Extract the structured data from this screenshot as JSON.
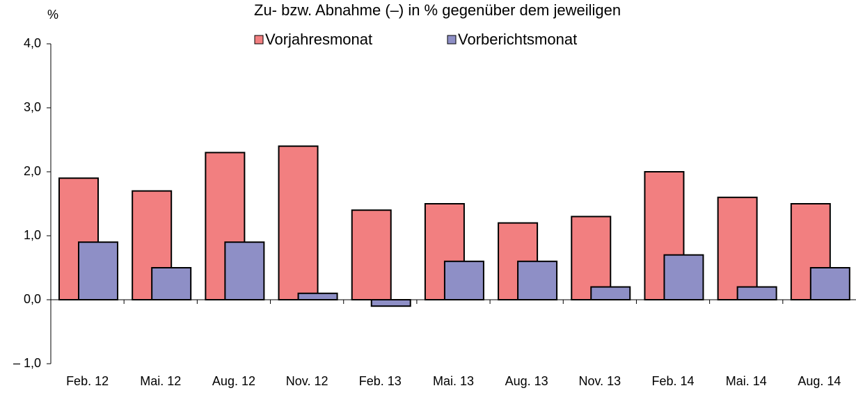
{
  "chart_data": {
    "type": "bar",
    "title": "Zu- bzw. Abnahme (–) in % gegenüber dem jeweiligen",
    "y_axis_label": "%",
    "categories": [
      "Feb. 12",
      "Mai. 12",
      "Aug. 12",
      "Nov. 12",
      "Feb. 13",
      "Mai. 13",
      "Aug. 13",
      "Nov. 13",
      "Feb. 14",
      "Mai. 14",
      "Aug. 14"
    ],
    "series": [
      {
        "name": "Vorjahresmonat",
        "color": "#f27f80",
        "values": [
          1.9,
          1.7,
          2.3,
          2.4,
          1.4,
          1.5,
          1.2,
          1.3,
          2.0,
          1.6,
          1.5
        ]
      },
      {
        "name": "Vorberichtsmonat",
        "color": "#8e8fc6",
        "values": [
          0.9,
          0.5,
          0.9,
          0.1,
          -0.1,
          0.6,
          0.6,
          0.2,
          0.7,
          0.2,
          0.5
        ]
      }
    ],
    "ylim": [
      -1,
      4
    ],
    "yticks": [
      {
        "value": -1,
        "label": "– 1,0"
      },
      {
        "value": 0,
        "label": "0,0"
      },
      {
        "value": 1,
        "label": "1,0"
      },
      {
        "value": 2,
        "label": "2,0"
      },
      {
        "value": 3,
        "label": "3,0"
      },
      {
        "value": 4,
        "label": "4,0"
      }
    ],
    "grid": false
  }
}
